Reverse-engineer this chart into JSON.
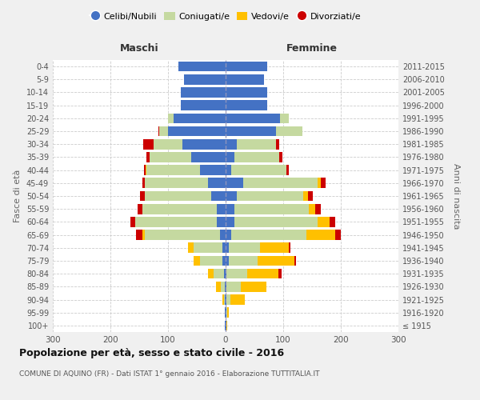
{
  "age_groups": [
    "100+",
    "95-99",
    "90-94",
    "85-89",
    "80-84",
    "75-79",
    "70-74",
    "65-69",
    "60-64",
    "55-59",
    "50-54",
    "45-49",
    "40-44",
    "35-39",
    "30-34",
    "25-29",
    "20-24",
    "15-19",
    "10-14",
    "5-9",
    "0-4"
  ],
  "birth_years": [
    "≤ 1915",
    "1916-1920",
    "1921-1925",
    "1926-1930",
    "1931-1935",
    "1936-1940",
    "1941-1945",
    "1946-1950",
    "1951-1955",
    "1956-1960",
    "1961-1965",
    "1966-1970",
    "1971-1975",
    "1976-1980",
    "1981-1985",
    "1986-1990",
    "1991-1995",
    "1996-2000",
    "2001-2005",
    "2006-2010",
    "2011-2015"
  ],
  "colors": {
    "celibe": "#4472c4",
    "coniugato": "#c5d9a0",
    "vedovo": "#ffc000",
    "divorziato": "#cc0000"
  },
  "maschi": {
    "celibe": [
      1,
      1,
      1,
      1,
      3,
      5,
      5,
      10,
      15,
      15,
      25,
      30,
      45,
      60,
      75,
      100,
      90,
      78,
      78,
      72,
      82
    ],
    "coniugato": [
      0,
      0,
      2,
      8,
      18,
      40,
      50,
      130,
      142,
      130,
      115,
      110,
      92,
      72,
      50,
      15,
      10,
      0,
      0,
      0,
      0
    ],
    "vedovo": [
      0,
      0,
      2,
      8,
      10,
      10,
      10,
      5,
      0,
      0,
      0,
      0,
      2,
      0,
      0,
      0,
      0,
      0,
      0,
      0,
      0
    ],
    "divorziato": [
      0,
      0,
      0,
      0,
      0,
      0,
      0,
      10,
      8,
      8,
      8,
      5,
      3,
      5,
      18,
      2,
      0,
      0,
      0,
      0,
      0
    ]
  },
  "femmine": {
    "celibe": [
      1,
      1,
      1,
      1,
      2,
      5,
      5,
      10,
      15,
      15,
      20,
      30,
      10,
      15,
      20,
      88,
      95,
      72,
      72,
      67,
      72
    ],
    "coniugato": [
      0,
      2,
      8,
      25,
      35,
      50,
      55,
      130,
      145,
      130,
      115,
      130,
      95,
      78,
      68,
      45,
      15,
      0,
      0,
      0,
      0
    ],
    "vedovo": [
      2,
      2,
      25,
      45,
      55,
      65,
      50,
      50,
      20,
      10,
      8,
      5,
      0,
      0,
      0,
      0,
      0,
      0,
      0,
      0,
      0
    ],
    "divorziato": [
      0,
      0,
      0,
      0,
      5,
      2,
      2,
      10,
      10,
      10,
      8,
      8,
      5,
      5,
      5,
      0,
      0,
      0,
      0,
      0,
      0
    ]
  },
  "title": "Popolazione per età, sesso e stato civile - 2016",
  "subtitle": "COMUNE DI AQUINO (FR) - Dati ISTAT 1° gennaio 2016 - Elaborazione TUTTITALIA.IT",
  "xlabel_left": "Maschi",
  "xlabel_right": "Femmine",
  "ylabel_left": "Fasce di età",
  "ylabel_right": "Anni di nascita",
  "xlim": 300,
  "bg_color": "#f0f0f0",
  "plot_bg": "#ffffff",
  "legend_labels": [
    "Celibi/Nubili",
    "Coniugati/e",
    "Vedovi/e",
    "Divorziati/e"
  ]
}
